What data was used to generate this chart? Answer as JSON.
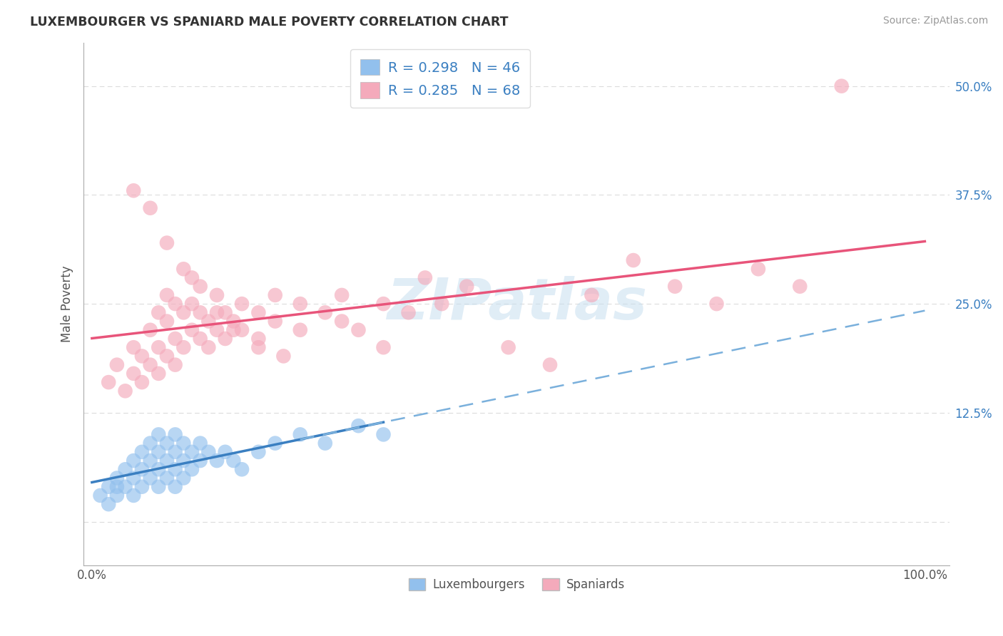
{
  "title": "LUXEMBOURGER VS SPANIARD MALE POVERTY CORRELATION CHART",
  "source": "Source: ZipAtlas.com",
  "ylabel": "Male Poverty",
  "ytick_values": [
    0,
    12.5,
    25.0,
    37.5,
    50.0
  ],
  "ytick_labels": [
    "",
    "12.5%",
    "25.0%",
    "37.5%",
    "50.0%"
  ],
  "legend_r1": "R = 0.298",
  "legend_n1": "N = 46",
  "legend_r2": "R = 0.285",
  "legend_n2": "N = 68",
  "blue_color": "#92C0ED",
  "pink_color": "#F4AABB",
  "blue_line_color": "#3A7FC1",
  "pink_line_color": "#E8547A",
  "blue_dash_color": "#7AB0DC",
  "watermark_color": "#C8DFF0",
  "grid_color": "#CCCCCC",
  "lux_x": [
    1,
    2,
    2,
    3,
    3,
    3,
    4,
    4,
    5,
    5,
    5,
    6,
    6,
    6,
    7,
    7,
    7,
    8,
    8,
    8,
    8,
    9,
    9,
    9,
    10,
    10,
    10,
    10,
    11,
    11,
    11,
    12,
    12,
    13,
    13,
    14,
    15,
    16,
    17,
    18,
    20,
    22,
    25,
    28,
    32,
    35
  ],
  "lux_y": [
    3,
    2,
    4,
    3,
    5,
    4,
    4,
    6,
    3,
    5,
    7,
    4,
    6,
    8,
    5,
    7,
    9,
    4,
    6,
    8,
    10,
    5,
    7,
    9,
    4,
    6,
    8,
    10,
    5,
    7,
    9,
    6,
    8,
    7,
    9,
    8,
    7,
    8,
    7,
    6,
    8,
    9,
    10,
    9,
    11,
    10
  ],
  "spa_x": [
    2,
    3,
    4,
    5,
    5,
    6,
    6,
    7,
    7,
    8,
    8,
    8,
    9,
    9,
    9,
    10,
    10,
    10,
    11,
    11,
    12,
    12,
    12,
    13,
    13,
    14,
    14,
    15,
    15,
    16,
    16,
    17,
    18,
    18,
    20,
    20,
    22,
    22,
    25,
    25,
    28,
    30,
    30,
    32,
    35,
    35,
    38,
    40,
    42,
    45,
    50,
    55,
    60,
    65,
    70,
    75,
    80,
    85,
    90,
    5,
    7,
    9,
    11,
    13,
    15,
    17,
    20,
    23
  ],
  "spa_y": [
    16,
    18,
    15,
    17,
    20,
    16,
    19,
    18,
    22,
    17,
    20,
    24,
    19,
    23,
    26,
    18,
    21,
    25,
    20,
    24,
    22,
    25,
    28,
    21,
    24,
    20,
    23,
    22,
    26,
    21,
    24,
    23,
    22,
    25,
    20,
    24,
    23,
    26,
    22,
    25,
    24,
    23,
    26,
    22,
    25,
    20,
    24,
    28,
    25,
    27,
    20,
    18,
    26,
    30,
    27,
    25,
    29,
    27,
    50,
    38,
    36,
    32,
    29,
    27,
    24,
    22,
    21,
    19
  ]
}
